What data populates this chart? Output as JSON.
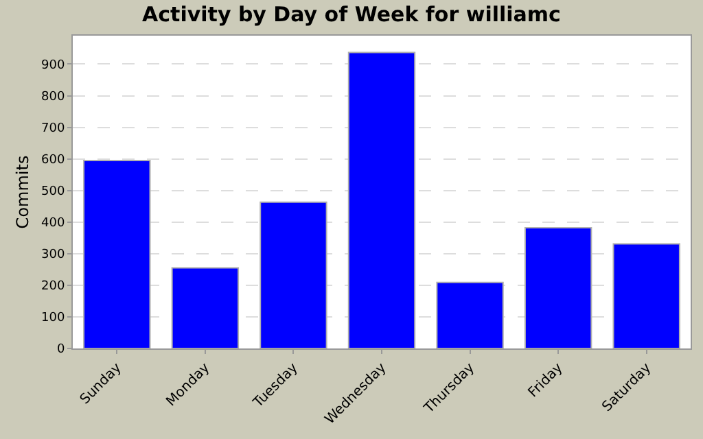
{
  "chart_data": {
    "type": "bar",
    "title": "Activity by Day of Week for williamc",
    "ylabel": "Commits",
    "categories": [
      "Sunday",
      "Monday",
      "Tuesday",
      "Wednesday",
      "Thursday",
      "Friday",
      "Saturday"
    ],
    "series": [
      {
        "color": "#0000ff",
        "values": [
          595,
          255,
          463,
          937,
          209,
          382,
          331
        ]
      }
    ],
    "ylim": [
      0,
      990
    ],
    "yticks": [
      0,
      100,
      200,
      300,
      400,
      500,
      600,
      700,
      800,
      900
    ],
    "grid": "y",
    "legend": false
  }
}
